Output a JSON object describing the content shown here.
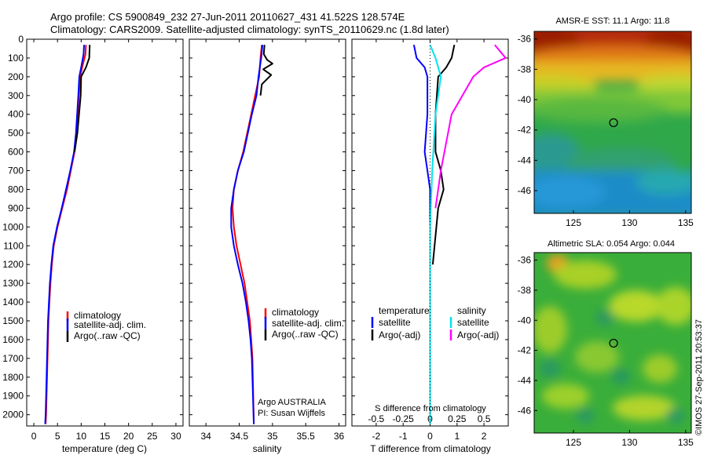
{
  "header": {
    "line1": "Argo profile: CS 5900849_232 27-Jun-2011 20110627_431 41.522S 128.574E",
    "line2": "Climatology: CARS2009. Satellite-adjusted climatology: synTS_20110629.nc (1.8d later)"
  },
  "credit": "©IMOS 27-Sep-2011 20:53:37",
  "colors": {
    "climatology": "#ff0000",
    "satellite": "#0000ff",
    "argo": "#000000",
    "sal_satellite": "#00e5ee",
    "sal_argo": "#ff00ff"
  },
  "chart_data": [
    {
      "type": "line",
      "xlabel": "temperature (deg C)",
      "ylim": [
        0,
        2060
      ],
      "y_inverted": true,
      "xlim": [
        -1.5,
        31.5
      ],
      "xticks": [
        "0",
        "5",
        "10",
        "15",
        "20",
        "25",
        "30"
      ],
      "yticks": [
        "0",
        "100",
        "200",
        "300",
        "400",
        "500",
        "600",
        "700",
        "800",
        "900",
        "1000",
        "1100",
        "1200",
        "1300",
        "1400",
        "1500",
        "1600",
        "1700",
        "1800",
        "1900",
        "2000"
      ],
      "legend": [
        "climatology",
        "satellite-adj. clim.",
        "Argo(..raw -QC)"
      ],
      "series": [
        {
          "name": "climatology",
          "x": [
            11.0,
            10.9,
            10.2,
            9.8,
            9.5,
            9.0,
            8.6,
            7.8,
            7.0,
            6.0,
            5.0,
            4.2,
            3.8,
            3.5,
            3.3,
            3.1,
            3.0,
            2.9,
            2.8,
            2.7,
            2.6,
            2.5
          ],
          "y": [
            30,
            80,
            150,
            200,
            300,
            500,
            600,
            700,
            800,
            900,
            1000,
            1100,
            1200,
            1300,
            1400,
            1500,
            1600,
            1700,
            1800,
            1900,
            2000,
            2050
          ]
        },
        {
          "name": "satellite-adj. clim.",
          "x": [
            10.6,
            10.5,
            10.0,
            9.6,
            9.4,
            8.9,
            8.5,
            7.7,
            6.8,
            5.9,
            4.9,
            4.1,
            3.7,
            3.4,
            3.2,
            3.0,
            2.9,
            2.8,
            2.7,
            2.6,
            2.5,
            2.4
          ],
          "y": [
            30,
            80,
            150,
            200,
            300,
            500,
            600,
            700,
            800,
            900,
            1000,
            1100,
            1200,
            1300,
            1400,
            1500,
            1600,
            1700,
            1800,
            1900,
            2000,
            2050
          ]
        },
        {
          "name": "Argo(..raw -QC)",
          "x": [
            11.8,
            11.7,
            11.0,
            10.0,
            9.9,
            9.2,
            8.6
          ],
          "y": [
            30,
            100,
            150,
            200,
            300,
            500,
            600
          ]
        }
      ]
    },
    {
      "type": "line",
      "xlabel": "salinity",
      "ylim": [
        0,
        2060
      ],
      "y_inverted": true,
      "xlim": [
        33.75,
        36.1
      ],
      "xticks": [
        "34",
        "34.5",
        "35",
        "35.5",
        "36"
      ],
      "legend": [
        "climatology",
        "satellite-adj. clim.",
        "Argo(..raw -QC)"
      ],
      "annotation": [
        "Argo AUSTRALIA",
        "PI: Susan Wijffels"
      ],
      "series": [
        {
          "name": "climatology",
          "x": [
            34.84,
            34.82,
            34.8,
            34.74,
            34.68,
            34.62,
            34.56,
            34.48,
            34.42,
            34.4,
            34.42,
            34.46,
            34.52,
            34.58,
            34.62,
            34.66,
            34.68,
            34.7,
            34.72
          ],
          "y": [
            30,
            100,
            200,
            300,
            400,
            500,
            600,
            700,
            800,
            900,
            1000,
            1100,
            1200,
            1300,
            1400,
            1500,
            1600,
            1700,
            2050
          ]
        },
        {
          "name": "satellite-adj. clim.",
          "x": [
            34.85,
            34.83,
            34.79,
            34.76,
            34.69,
            34.63,
            34.57,
            34.48,
            34.42,
            34.38,
            34.38,
            34.42,
            34.48,
            34.55,
            34.6,
            34.64,
            34.67,
            34.69,
            34.72
          ],
          "y": [
            30,
            100,
            200,
            300,
            400,
            500,
            600,
            700,
            800,
            900,
            1000,
            1100,
            1200,
            1300,
            1400,
            1500,
            1600,
            1700,
            2050
          ]
        },
        {
          "name": "Argo(..raw -QC)",
          "x": [
            34.88,
            34.87,
            34.92,
            35.0,
            34.86,
            34.98,
            34.84,
            34.82
          ],
          "y": [
            30,
            80,
            110,
            130,
            160,
            190,
            240,
            300
          ]
        }
      ]
    },
    {
      "type": "line",
      "xlabel": "T difference from climatology",
      "top_label": "S difference from climatology",
      "ylim": [
        0,
        2060
      ],
      "y_inverted": true,
      "xlim": [
        -2.9,
        2.9
      ],
      "xticks": [
        "-2",
        "-1",
        "0",
        "1",
        "2"
      ],
      "top_ticks": [
        "-0.5",
        "-0.25",
        "0",
        "0.25",
        "0.5"
      ],
      "legend": [
        {
          "group": "temperature",
          "items": [
            "satellite",
            "Argo(-adj)"
          ]
        },
        {
          "group": "salinity",
          "items": [
            "satellite",
            "Argo(-adj)"
          ]
        }
      ],
      "series": [
        {
          "name": "satellite (temperature)",
          "x": [
            -0.6,
            -0.5,
            -0.2,
            -0.1,
            -0.1,
            -0.2,
            -0.1,
            0.0,
            0.0,
            0.0,
            0.0
          ],
          "y": [
            30,
            100,
            150,
            200,
            400,
            600,
            700,
            800,
            900,
            1200,
            2050
          ]
        },
        {
          "name": "Argo(-adj) (temperature)",
          "x": [
            0.9,
            0.8,
            0.6,
            0.3,
            0.2,
            0.2,
            0.4,
            0.5,
            0.3,
            0.1
          ],
          "y": [
            30,
            100,
            150,
            200,
            400,
            600,
            700,
            800,
            900,
            1200
          ]
        },
        {
          "name": "satellite (salinity)",
          "x": [
            0.0,
            0.05,
            0.1,
            0.05,
            0.02,
            0.0,
            0.0
          ],
          "y": [
            30,
            100,
            200,
            400,
            700,
            1000,
            2050
          ]
        },
        {
          "name": "Argo(-adj) (salinity)",
          "x": [
            0.6,
            0.7,
            0.5,
            0.4,
            0.2,
            0.1,
            0.05
          ],
          "y": [
            30,
            100,
            150,
            200,
            400,
            700,
            900
          ]
        }
      ]
    },
    {
      "type": "heatmap",
      "title": "AMSR-E SST: 11.1  Argo: 11.8",
      "xlim": [
        121.5,
        135.5
      ],
      "ylim": [
        -47.5,
        -35.5
      ],
      "xticks": [
        "125",
        "130",
        "135"
      ],
      "yticks": [
        "-36",
        "-38",
        "-40",
        "-42",
        "-44",
        "-46"
      ],
      "marker": {
        "lon": 128.574,
        "lat": -41.522
      }
    },
    {
      "type": "heatmap",
      "title": "Altimetric SLA: 0.054  Argo: 0.044",
      "xlim": [
        121.5,
        135.5
      ],
      "ylim": [
        -47.5,
        -35.5
      ],
      "xticks": [
        "125",
        "130",
        "135"
      ],
      "yticks": [
        "-36",
        "-38",
        "-40",
        "-42",
        "-44",
        "-46"
      ],
      "marker": {
        "lon": 128.574,
        "lat": -41.522
      }
    }
  ]
}
